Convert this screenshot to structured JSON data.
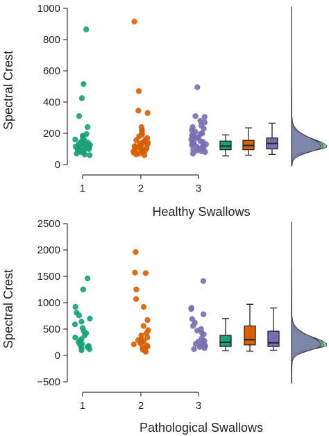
{
  "colors": {
    "g1": "#1b9e77",
    "g2": "#d95f02",
    "g3": "#7570b3",
    "density_fill": "#8c7b86"
  },
  "chart_data": [
    {
      "type": "scatter",
      "panel": "top",
      "ylabel": "Spectral Crest",
      "xlabel": "Healthy Swallows",
      "categories": [
        "1",
        "2",
        "3"
      ],
      "yticks": [
        "0",
        "200",
        "400",
        "600",
        "800",
        "1000"
      ],
      "ylim": [
        0,
        1000
      ],
      "series": [
        {
          "values": [
            865,
            515,
            425,
            310,
            240,
            195,
            185,
            175,
            165,
            160,
            155,
            150,
            145,
            140,
            135,
            130,
            128,
            125,
            122,
            120,
            118,
            115,
            112,
            110,
            108,
            105,
            100,
            98,
            95,
            92,
            88,
            85,
            80,
            75,
            70,
            65,
            60
          ]
        },
        {
          "values": [
            915,
            470,
            345,
            330,
            240,
            220,
            215,
            200,
            190,
            180,
            170,
            160,
            155,
            150,
            145,
            140,
            135,
            130,
            128,
            125,
            120,
            118,
            115,
            110,
            105,
            100,
            95,
            90,
            88,
            85,
            80,
            75,
            70,
            65,
            60
          ]
        },
        {
          "values": [
            495,
            310,
            305,
            280,
            270,
            250,
            240,
            230,
            220,
            210,
            200,
            195,
            190,
            185,
            180,
            175,
            170,
            165,
            160,
            155,
            150,
            145,
            140,
            138,
            135,
            130,
            125,
            120,
            115,
            110,
            105,
            100,
            95,
            90,
            85,
            80,
            70
          ]
        }
      ],
      "boxplots": [
        {
          "whisker_low": 55,
          "q1": 95,
          "median": 118,
          "q3": 150,
          "whisker_high": 190
        },
        {
          "whisker_low": 60,
          "q1": 95,
          "median": 122,
          "q3": 155,
          "whisker_high": 235
        },
        {
          "whisker_low": 65,
          "q1": 100,
          "median": 135,
          "q3": 170,
          "whisker_high": 265
        }
      ],
      "density_peak": 115
    },
    {
      "type": "scatter",
      "panel": "bottom",
      "ylabel": "Spectral Crest",
      "xlabel": "Pathological Swallows",
      "categories": [
        "1",
        "2",
        "3"
      ],
      "yticks": [
        "−500",
        "0",
        "500",
        "1000",
        "1500",
        "2000",
        "2500"
      ],
      "ylim": [
        -500,
        2500
      ],
      "series": [
        {
          "values": [
            1460,
            1250,
            920,
            810,
            760,
            700,
            640,
            590,
            520,
            460,
            420,
            380,
            340,
            310,
            280,
            250,
            220,
            200,
            180,
            160,
            140,
            120,
            100
          ]
        },
        {
          "values": [
            1960,
            1570,
            1560,
            1250,
            1070,
            920,
            670,
            560,
            480,
            420,
            380,
            340,
            310,
            290,
            270,
            250,
            230,
            210,
            190,
            170,
            150,
            130,
            110,
            90,
            70
          ]
        },
        {
          "values": [
            1410,
            900,
            880,
            780,
            690,
            620,
            560,
            500,
            470,
            420,
            400,
            320,
            280,
            260,
            240,
            220,
            200,
            190,
            180,
            160,
            140,
            120
          ]
        }
      ],
      "boxplots": [
        {
          "whisker_low": 90,
          "q1": 170,
          "median": 250,
          "q3": 380,
          "whisker_high": 700
        },
        {
          "whisker_low": 80,
          "q1": 200,
          "median": 300,
          "q3": 560,
          "whisker_high": 970
        },
        {
          "whisker_low": 100,
          "q1": 170,
          "median": 240,
          "q3": 460,
          "whisker_high": 900
        }
      ],
      "density_peak": 200
    }
  ]
}
